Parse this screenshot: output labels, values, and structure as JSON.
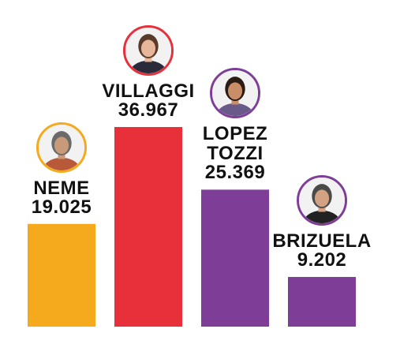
{
  "chart_data": {
    "type": "bar",
    "categories": [
      "NEME",
      "VILLAGGI",
      "LOPEZ TOZZI",
      "BRIZUELA"
    ],
    "values": [
      19025,
      36967,
      25369,
      9202
    ],
    "value_labels": [
      "19.025",
      "36.967",
      "25.369",
      "9.202"
    ],
    "name_lines": [
      [
        "NEME"
      ],
      [
        "VILLAGGI"
      ],
      [
        "LOPEZ",
        "TOZZI"
      ],
      [
        "BRIZUELA"
      ]
    ],
    "colors": [
      "#F5A91C",
      "#E8303A",
      "#7E3E98",
      "#7E3E98"
    ],
    "avatar_ring_colors": [
      "#F5A91C",
      "#E8303A",
      "#7E3E98",
      "#7E3E98"
    ],
    "ylim": [
      0,
      36967
    ],
    "grid": false,
    "title": "",
    "xlabel": "",
    "ylabel": ""
  },
  "avatars": [
    {
      "icon": "person-photo-icon",
      "hair": "#6a6a6a",
      "skin": "#c99a7a",
      "shirt": "#b85a3a"
    },
    {
      "icon": "person-photo-icon",
      "hair": "#5a3a28",
      "skin": "#e6b79a",
      "shirt": "#2a2a3a"
    },
    {
      "icon": "person-photo-icon",
      "hair": "#2a1c14",
      "skin": "#c98e68",
      "shirt": "#6a5a8a"
    },
    {
      "icon": "person-photo-icon",
      "hair": "#4a4a4a",
      "skin": "#d2a282",
      "shirt": "#222222"
    }
  ]
}
